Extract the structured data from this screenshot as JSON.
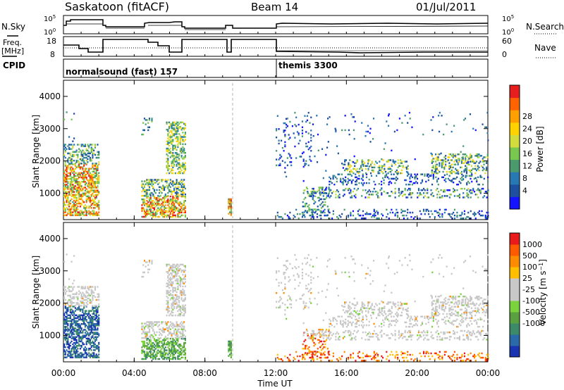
{
  "header": {
    "title": "Saskatoon (fitACF)",
    "beam": "Beam 14",
    "date": "01/Jul/2011"
  },
  "housekeeping": {
    "nsky_label": "N.Sky",
    "nsearch_label": "N.Search",
    "freq_label_1": "Freq.",
    "freq_label_2": "[MHz]",
    "nave_label": "Nave",
    "cpid_label": "CPID",
    "noise_ticks_left": [
      "10^5",
      "10^0"
    ],
    "noise_ticks_right": [
      "10^5",
      "10^0"
    ],
    "freq_ticks": [
      "18",
      "8"
    ],
    "nave_ticks": [
      "60",
      "0"
    ],
    "programs": [
      {
        "label": "normalsound (fast) 157",
        "start_hour": 0
      },
      {
        "label": "themis 3300",
        "start_hour": 12
      }
    ]
  },
  "chart_data": [
    {
      "type": "heatmap",
      "name": "power",
      "ylabel": "Slant Range [km]",
      "xlabel": "Time UT",
      "xlim": [
        0,
        24
      ],
      "ylim": [
        180,
        4500
      ],
      "xticks": [
        "00:00",
        "04:00",
        "08:00",
        "12:00",
        "16:00",
        "20:00",
        "00:00"
      ],
      "yticks": [
        1000,
        2000,
        3000,
        4000
      ],
      "colorbar": {
        "label": "Power [dB]",
        "ticks": [
          "4",
          "8",
          "12",
          "16",
          "20",
          "24",
          "28"
        ],
        "colors": [
          "#1414ff",
          "#1e50a0",
          "#2878b4",
          "#4a9a6e",
          "#78c850",
          "#d2dc3c",
          "#ffd200",
          "#ffa000",
          "#ff6400",
          "#e61e1e"
        ]
      },
      "echo_regions": [
        {
          "t": [
            0.0,
            1.8
          ],
          "r": [
            300,
            2500
          ],
          "level": "high"
        },
        {
          "t": [
            4.3,
            6.9
          ],
          "r": [
            200,
            3300
          ],
          "level": "high"
        },
        {
          "t": [
            9.3,
            9.5
          ],
          "r": [
            300,
            800
          ],
          "level": "high"
        },
        {
          "t": [
            12.0,
            24.0
          ],
          "r": [
            200,
            3500
          ],
          "level": "low"
        }
      ]
    },
    {
      "type": "heatmap",
      "name": "velocity",
      "ylabel": "Slant Range [km]",
      "xlabel": "Time UT",
      "xlim": [
        0,
        24
      ],
      "ylim": [
        180,
        4500
      ],
      "xticks": [
        "00:00",
        "04:00",
        "08:00",
        "12:00",
        "16:00",
        "20:00",
        "00:00"
      ],
      "yticks": [
        1000,
        2000,
        3000,
        4000
      ],
      "colorbar": {
        "label": "Velocity [m s^-1]",
        "ticks": [
          "1000",
          "500",
          "100",
          "25",
          "-25",
          "-100",
          "-500",
          "-1000"
        ],
        "colors": [
          "#1a33b0",
          "#2a6aa8",
          "#3c8a6a",
          "#5aa040",
          "#7ad23c",
          "#c8c8c8",
          "#c8c8c8",
          "#ffbe00",
          "#ff8c00",
          "#ff5a00",
          "#e81a1a"
        ]
      }
    }
  ]
}
